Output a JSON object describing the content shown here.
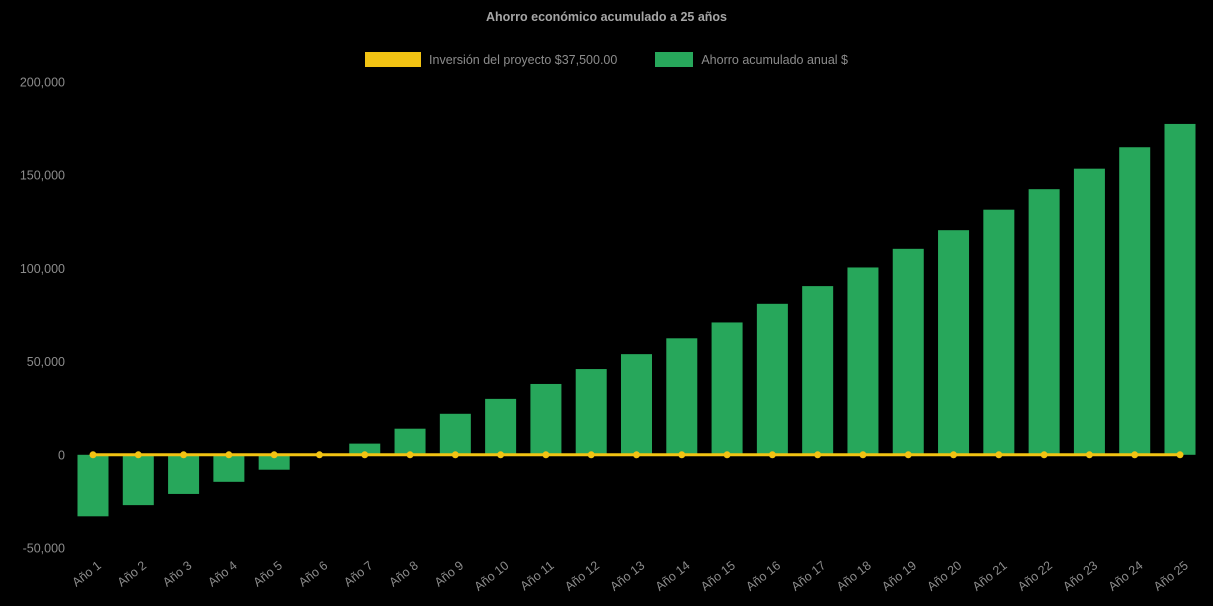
{
  "chart_data": {
    "type": "bar",
    "title": "Ahorro económico acumulado a 25 años",
    "background": "#000000",
    "grid": false,
    "legend_position": "top",
    "ylim": [
      -50000,
      200000
    ],
    "yticks": [
      -50000,
      0,
      50000,
      100000,
      150000,
      200000
    ],
    "categories": [
      "Año 1",
      "Año 2",
      "Año 3",
      "Año 4",
      "Año 5",
      "Año 6",
      "Año 7",
      "Año 8",
      "Año 9",
      "Año 10",
      "Año 11",
      "Año 12",
      "Año 13",
      "Año 14",
      "Año 15",
      "Año 16",
      "Año 17",
      "Año 18",
      "Año 19",
      "Año 20",
      "Año 21",
      "Año 22",
      "Año 23",
      "Año 24",
      "Año 25"
    ],
    "series": [
      {
        "name": "Inversión del proyecto $37,500.00",
        "type": "line",
        "color": "#F2C313",
        "values": [
          0,
          0,
          0,
          0,
          0,
          0,
          0,
          0,
          0,
          0,
          0,
          0,
          0,
          0,
          0,
          0,
          0,
          0,
          0,
          0,
          0,
          0,
          0,
          0,
          0
        ]
      },
      {
        "name": "Ahorro acumulado anual $",
        "type": "bar",
        "color": "#27A75B",
        "values": [
          -33000,
          -27000,
          -21000,
          -14500,
          -8000,
          -500,
          6000,
          14000,
          22000,
          30000,
          38000,
          46000,
          54000,
          62500,
          71000,
          81000,
          90500,
          100500,
          110500,
          120500,
          131500,
          142500,
          153500,
          165000,
          177500
        ]
      }
    ]
  }
}
